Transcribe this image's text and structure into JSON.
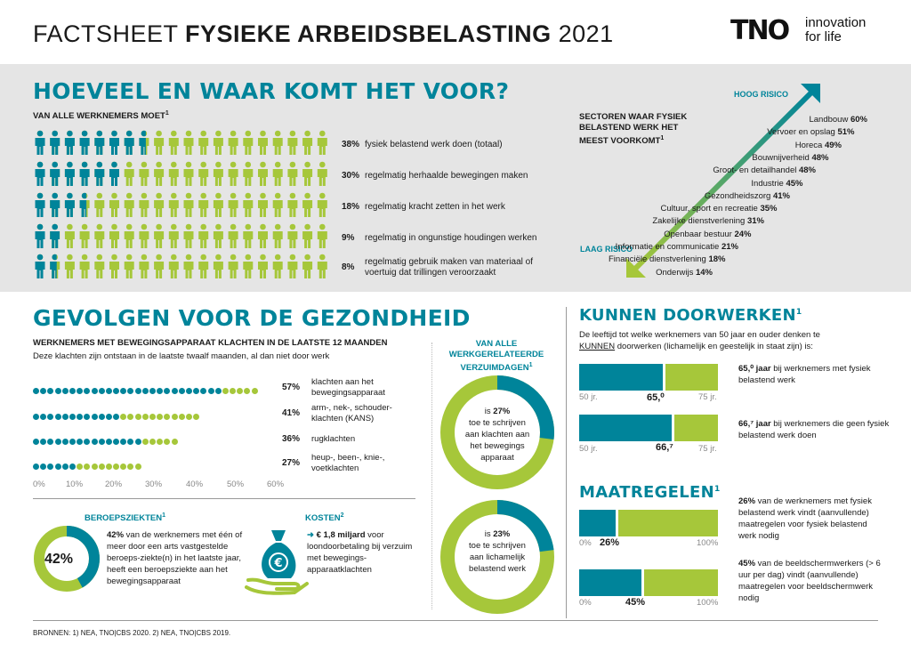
{
  "header": {
    "title_prefix": "FACTSHEET ",
    "title_strong": "FYSIEKE ARBEIDSBELASTING",
    "title_year": " 2021",
    "logo_mark": "TNO",
    "logo_tag_1": "innovation",
    "logo_tag_2": "for life"
  },
  "section1": {
    "title": "HOEVEEL EN WAAR KOMT HET VOOR?",
    "subtitle": "VAN ALLE WERKNEMERS MOET",
    "subtitle_sup": "1",
    "rows": [
      {
        "pct": "38%",
        "text": "fysiek belastend werk doen (totaal)",
        "value": 38
      },
      {
        "pct": "30%",
        "text": "regelmatig herhaalde bewegingen maken",
        "value": 30
      },
      {
        "pct": "18%",
        "text": "regelmatig kracht zetten in het werk",
        "value": 18
      },
      {
        "pct": "9%",
        "text": "regelmatig in ongunstige houdingen werken",
        "value": 9
      },
      {
        "pct": "8%",
        "text": "regelmatig gebruik maken van materiaal of voertuig dat trillingen veroorzaakt",
        "value": 8
      }
    ]
  },
  "sectors": {
    "head": "SECTOREN WAAR FYSIEK BELASTEND WERK HET MEEST VOORKOMT",
    "head_sup": "1",
    "high": "HOOG RISICO",
    "low": "LAAG RISICO",
    "items": [
      {
        "name": "Landbouw",
        "pct": "60%"
      },
      {
        "name": "Vervoer en opslag",
        "pct": "51%"
      },
      {
        "name": "Horeca",
        "pct": "49%"
      },
      {
        "name": "Bouwnijverheid",
        "pct": "48%"
      },
      {
        "name": "Groot- en detailhandel",
        "pct": "48%"
      },
      {
        "name": "Industrie",
        "pct": "45%"
      },
      {
        "name": "Gezondheidszorg",
        "pct": "41%"
      },
      {
        "name": "Cultuur, sport en recreatie",
        "pct": "35%"
      },
      {
        "name": "Zakelijke dienstverlening",
        "pct": "31%"
      },
      {
        "name": "Openbaar bestuur",
        "pct": "24%"
      },
      {
        "name": "Informatie en communicatie",
        "pct": "21%"
      },
      {
        "name": "Financiële dienstverlening",
        "pct": "18%"
      },
      {
        "name": "Onderwijs",
        "pct": "14%"
      }
    ]
  },
  "section2": {
    "title": "GEVOLGEN VOOR DE GEZONDHEID",
    "sub": "WERKNEMERS MET BEWEGINGSAPPARAAT KLACHTEN IN DE LAATSTE 12 MAANDEN",
    "desc": "Deze klachten zijn ontstaan in de laatste twaalf maanden, al dan niet door werk",
    "rows": [
      {
        "pct": "57%",
        "label": "klachten aan het bewegingsapparaat",
        "value": 57
      },
      {
        "pct": "41%",
        "label": "arm-, nek-, schouder-klachten (KANS)",
        "value": 41
      },
      {
        "pct": "36%",
        "label": "rugklachten",
        "value": 36
      },
      {
        "pct": "27%",
        "label": "heup-, been-, knie-, voetklachten",
        "value": 27
      }
    ],
    "axis": [
      "0%",
      "10%",
      "20%",
      "30%",
      "40%",
      "50%",
      "60%"
    ],
    "beroep_title": "BEROEPSZIEKTEN",
    "beroep_sup": "1",
    "beroep_pct": "42%",
    "beroep_value": 42,
    "beroep_text_b": "42%",
    "beroep_text": " van de werknemers met één of meer door een arts vastgestelde beroeps-ziekte(n) in het laatste jaar, heeft een beroepsziekte aan het bewegingsapparaat",
    "kosten_title": "KOSTEN",
    "kosten_sup": "2",
    "kosten_b": "€ 1,8 miljard",
    "kosten_text": " voor loondoorbetaling bij verzuim met bewegings-apparaatklachten",
    "verzuim_title": "VAN ALLE WERKGERELATEERDE VERZUIMDAGEN",
    "verzuim_sup": "1",
    "donut1_pre": "is ",
    "donut1_pct": "27%",
    "donut1_value": 27,
    "donut1_text": "toe te schrijven aan klachten aan het bewegings apparaat",
    "donut2_pre": "is ",
    "donut2_pct": "23%",
    "donut2_value": 23,
    "donut2_text": "toe te schrijven aan lichamelijk belastend werk"
  },
  "doorwerken": {
    "title": "KUNNEN DOORWERKEN",
    "sup": "1",
    "intro_1": "De leeftijd tot welke werknemers van 50 jaar en ouder denken te",
    "intro_u": "KUNNEN",
    "intro_2": " doorwerken (lichamelijk en geestelijk in staat zijn) is:",
    "bars": [
      {
        "min": "50 jr.",
        "max": "75 jr.",
        "val": "65,⁰",
        "value": 65.0,
        "b": "65,⁰ jaar",
        "t": " bij werknemers met fysiek belastend werk"
      },
      {
        "min": "50 jr.",
        "max": "75 jr.",
        "val": "66,⁷",
        "value": 66.7,
        "b": "66,⁷ jaar",
        "t": " bij werknemers die geen fysiek belastend werk doen"
      }
    ]
  },
  "maatregelen": {
    "title": "MAATREGELEN",
    "sup": "1",
    "bars": [
      {
        "min": "0%",
        "max": "100%",
        "val": "26%",
        "value": 26,
        "b": "26%",
        "t": " van de werknemers met fysiek belastend werk vindt (aanvullende) maatregelen voor fysiek belastend werk nodig"
      },
      {
        "min": "0%",
        "max": "100%",
        "val": "45%",
        "value": 45,
        "b": "45%",
        "t": " van de beeldschermwerkers (> 6 uur per dag) vindt (aanvullende) maatregelen voor beeldschermwerk nodig"
      }
    ]
  },
  "footer": "BRONNEN: 1) NEA, TNO|CBS 2020.  2) NEA, TNO|CBS 2019.",
  "colors": {
    "teal": "#00849a",
    "green": "#a6c73a",
    "grey_band": "#e5e5e5",
    "ring_light": "#d9e7a8"
  }
}
